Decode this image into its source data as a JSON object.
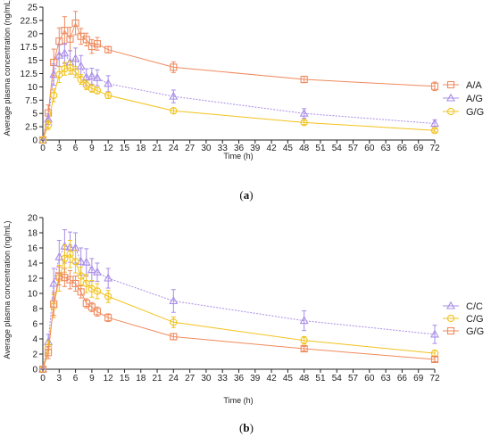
{
  "chart_data": [
    {
      "type": "line",
      "panel_label": "(a)",
      "panel_letter": "a",
      "xlabel": "Time (h)",
      "ylabel": "Average plasma concentration (ng/mL)",
      "x_ticks": [
        0,
        3,
        6,
        9,
        12,
        15,
        18,
        21,
        24,
        27,
        30,
        33,
        36,
        39,
        42,
        45,
        48,
        51,
        54,
        57,
        60,
        63,
        66,
        69,
        72
      ],
      "y_ticks": [
        0,
        2.5,
        5,
        7.5,
        10,
        12.5,
        15,
        17.5,
        20,
        22.5,
        25
      ],
      "y_tick_labels": [
        "0",
        "2.5",
        "5",
        "7.5",
        "10",
        "12.5",
        "15",
        "17.5",
        "20",
        "22.5",
        "25"
      ],
      "xlim": [
        0,
        72
      ],
      "ylim": [
        0,
        25
      ],
      "legend_position": "right",
      "grid": false,
      "x": [
        0,
        1,
        2,
        3,
        4,
        5,
        6,
        7,
        8,
        9,
        10,
        12,
        24,
        48,
        72
      ],
      "series": [
        {
          "name": "A/A",
          "marker": "square",
          "color": "#f08a5d",
          "values": [
            0,
            5.1,
            14.6,
            18.6,
            20.6,
            19.0,
            22.0,
            19.5,
            18.9,
            17.6,
            18.1,
            17.0,
            13.7,
            11.4,
            10.1
          ],
          "errors": [
            0,
            1.5,
            2.5,
            2.5,
            2.6,
            2.2,
            2.2,
            1.5,
            1.2,
            1.3,
            1.2,
            0.6,
            1.0,
            0.6,
            0.8
          ]
        },
        {
          "name": "A/G",
          "marker": "triangle",
          "color": "#a98de8",
          "values": [
            0,
            3.9,
            12.3,
            15.9,
            16.3,
            14.6,
            15.3,
            13.9,
            11.8,
            12.0,
            11.7,
            10.6,
            8.2,
            5.0,
            3.1
          ],
          "errors": [
            0,
            1.0,
            2.0,
            2.0,
            1.9,
            2.2,
            2.0,
            2.0,
            1.6,
            1.5,
            1.5,
            1.5,
            1.2,
            0.9,
            0.7
          ]
        },
        {
          "name": "G/G",
          "marker": "circle",
          "color": "#f2c21b",
          "values": [
            0,
            2.8,
            8.4,
            12.3,
            13.4,
            13.6,
            12.8,
            11.4,
            10.3,
            9.7,
            9.3,
            8.4,
            5.5,
            3.3,
            1.8
          ],
          "errors": [
            0,
            0.8,
            1.2,
            1.5,
            1.2,
            1.2,
            1.0,
            0.9,
            0.8,
            0.7,
            0.6,
            0.6,
            0.5,
            0.4,
            0.3
          ]
        }
      ]
    },
    {
      "type": "line",
      "panel_label": "(b)",
      "panel_letter": "b",
      "xlabel": "Time (h)",
      "ylabel": "Average plasma concentration (ng/mL)",
      "x_ticks": [
        0,
        3,
        6,
        9,
        12,
        15,
        18,
        21,
        24,
        27,
        30,
        33,
        36,
        39,
        42,
        45,
        48,
        51,
        54,
        57,
        60,
        63,
        66,
        69,
        72
      ],
      "y_ticks": [
        0,
        2,
        4,
        6,
        8,
        10,
        12,
        14,
        16,
        18,
        20
      ],
      "y_tick_labels": [
        "0",
        "2",
        "4",
        "6",
        "8",
        "10",
        "12",
        "14",
        "16",
        "18",
        "20"
      ],
      "xlim": [
        0,
        72
      ],
      "ylim": [
        0,
        20
      ],
      "legend_position": "right",
      "grid": false,
      "x": [
        0,
        1,
        2,
        3,
        4,
        5,
        6,
        7,
        8,
        9,
        10,
        12,
        24,
        48,
        72
      ],
      "series": [
        {
          "name": "C/C",
          "marker": "triangle",
          "color": "#a98de8",
          "values": [
            0,
            3.6,
            11.3,
            14.8,
            16.2,
            16.1,
            16.0,
            14.2,
            14.1,
            13.1,
            12.8,
            12.0,
            9.0,
            6.4,
            4.6
          ],
          "errors": [
            0,
            1.0,
            2.0,
            2.2,
            2.2,
            2.0,
            2.0,
            1.8,
            1.8,
            1.5,
            1.2,
            1.3,
            1.5,
            1.3,
            1.2
          ]
        },
        {
          "name": "C/G",
          "marker": "circle",
          "color": "#f2c21b",
          "values": [
            0,
            2.9,
            8.3,
            12.0,
            14.6,
            15.2,
            14.2,
            12.3,
            11.3,
            10.6,
            10.3,
            9.6,
            6.2,
            3.8,
            2.1
          ],
          "errors": [
            0,
            0.8,
            1.5,
            1.7,
            1.8,
            1.8,
            1.5,
            1.2,
            1.2,
            1.1,
            1.0,
            0.8,
            0.7,
            0.5,
            0.4
          ]
        },
        {
          "name": "G/G",
          "marker": "square",
          "color": "#f08a5d",
          "values": [
            0,
            2.2,
            8.6,
            12.3,
            12.1,
            11.8,
            11.3,
            10.2,
            8.7,
            8.2,
            7.6,
            6.8,
            4.3,
            2.7,
            1.3
          ],
          "errors": [
            0,
            0.8,
            1.5,
            1.2,
            1.2,
            1.2,
            1.0,
            0.8,
            0.6,
            0.6,
            0.6,
            0.5,
            0.4,
            0.3,
            0.3
          ]
        }
      ]
    }
  ]
}
